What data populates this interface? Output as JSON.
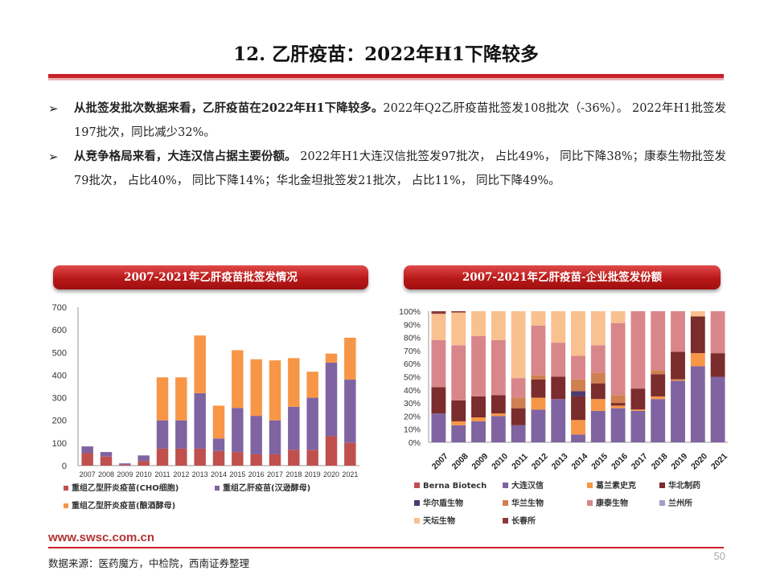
{
  "title": "12. 乙肝疫苗：2022年H1下降较多",
  "bullets": [
    {
      "bold": "从批签发批次数据来看，乙肝疫苗在2022年H1下降较多。",
      "rest": "2022年Q2乙肝疫苗批签发108批次（-36%）。 2022年H1批签发197批次，同比减少32%。"
    },
    {
      "bold": "从竞争格局来看，大连汉信占据主要份额。",
      "rest": " 2022年H1大连汉信批签发97批次， 占比49%， 同比下降38%；康泰生物批签发79批次， 占比40%， 同比下降14%；华北金坦批签发21批次， 占比11%， 同比下降49%。"
    }
  ],
  "chart1_title": "2007-2021年乙肝疫苗批签发情况",
  "chart2_title": "2007-2021年乙肝疫苗-企业批签发份额",
  "footer_url": "www.swsc.com.cn",
  "page_number": "50",
  "source": "数据来源：医药魔方，中检院，西南证券整理",
  "chart_data": [
    {
      "type": "bar",
      "stacked": true,
      "ylim": [
        0,
        700
      ],
      "yticks": [
        "0",
        "100",
        "200",
        "300",
        "400",
        "500",
        "600",
        "700"
      ],
      "categories": [
        "2007",
        "2008",
        "2009",
        "2010",
        "2011",
        "2012",
        "2013",
        "2014",
        "2015",
        "2016",
        "2017",
        "2018",
        "2019",
        "2020",
        "2021"
      ],
      "series": [
        {
          "name": "重组乙型肝炎疫苗(CHO细胞)",
          "color": "#c0504d",
          "values": [
            55,
            40,
            5,
            20,
            75,
            75,
            75,
            65,
            60,
            50,
            50,
            70,
            70,
            130,
            100
          ]
        },
        {
          "name": "重组乙肝疫苗(汉逊酵母)",
          "color": "#8064a2",
          "values": [
            30,
            20,
            5,
            25,
            125,
            125,
            245,
            55,
            195,
            170,
            150,
            190,
            230,
            325,
            280
          ]
        },
        {
          "name": "重组乙型肝炎疫苗(酿酒酵母)",
          "color": "#f79646",
          "values": [
            0,
            0,
            0,
            0,
            190,
            190,
            255,
            145,
            255,
            250,
            265,
            215,
            115,
            40,
            185
          ]
        }
      ],
      "legend_position": "bottom"
    },
    {
      "type": "bar",
      "stacked": true,
      "percent": true,
      "ylim": [
        0,
        100
      ],
      "yticks": [
        "0%",
        "10%",
        "20%",
        "30%",
        "40%",
        "50%",
        "60%",
        "70%",
        "80%",
        "90%",
        "100%"
      ],
      "categories": [
        "2007",
        "2008",
        "2009",
        "2010",
        "2011",
        "2012",
        "2013",
        "2014",
        "2015",
        "2016",
        "2017",
        "2018",
        "2019",
        "2020",
        "2021"
      ],
      "series": [
        {
          "name": "Berna Biotech",
          "color": "#c0504d",
          "values": [
            0,
            0,
            0,
            0,
            0,
            0,
            0,
            0,
            0,
            0,
            0,
            0,
            0,
            0,
            0
          ]
        },
        {
          "name": "大连汉信",
          "color": "#8064a2",
          "values": [
            22,
            13,
            16,
            20,
            13,
            25,
            33,
            6,
            24,
            26,
            24,
            33,
            47,
            58,
            50
          ]
        },
        {
          "name": "葛兰素史克",
          "color": "#f79646",
          "values": [
            0,
            3,
            3,
            2,
            0,
            9,
            0,
            11,
            9,
            2,
            1,
            2,
            1,
            10,
            0
          ]
        },
        {
          "name": "华北制药",
          "color": "#7b2c2c",
          "values": [
            20,
            16,
            16,
            14,
            13,
            14,
            17,
            18,
            12,
            2,
            16,
            17,
            21,
            28,
            18
          ]
        },
        {
          "name": "华尔盾生物",
          "color": "#4f3a6e",
          "values": [
            0,
            0,
            0,
            0,
            0,
            0,
            0,
            4,
            0,
            0,
            0,
            0,
            0,
            0,
            0
          ]
        },
        {
          "name": "华兰生物",
          "color": "#d08050",
          "values": [
            0,
            0,
            0,
            0,
            8,
            3,
            0,
            9,
            8,
            6,
            0,
            3,
            0,
            0,
            0
          ]
        },
        {
          "name": "康泰生物",
          "color": "#d9868a",
          "values": [
            36,
            42,
            46,
            42,
            15,
            38,
            26,
            18,
            21,
            55,
            59,
            45,
            31,
            0,
            32
          ]
        },
        {
          "name": "兰州所",
          "color": "#a99bc8",
          "values": [
            0,
            0,
            0,
            0,
            0,
            0,
            0,
            0,
            0,
            0,
            0,
            0,
            0,
            0,
            0
          ]
        },
        {
          "name": "天坛生物",
          "color": "#f9c090",
          "values": [
            20,
            25,
            19,
            22,
            51,
            11,
            24,
            34,
            26,
            9,
            0,
            0,
            0,
            4,
            0
          ]
        },
        {
          "name": "长春所",
          "color": "#8b3a3a",
          "values": [
            2,
            1,
            0,
            0,
            0,
            0,
            0,
            0,
            0,
            0,
            0,
            0,
            0,
            0,
            0
          ]
        }
      ],
      "legend_position": "bottom"
    }
  ]
}
